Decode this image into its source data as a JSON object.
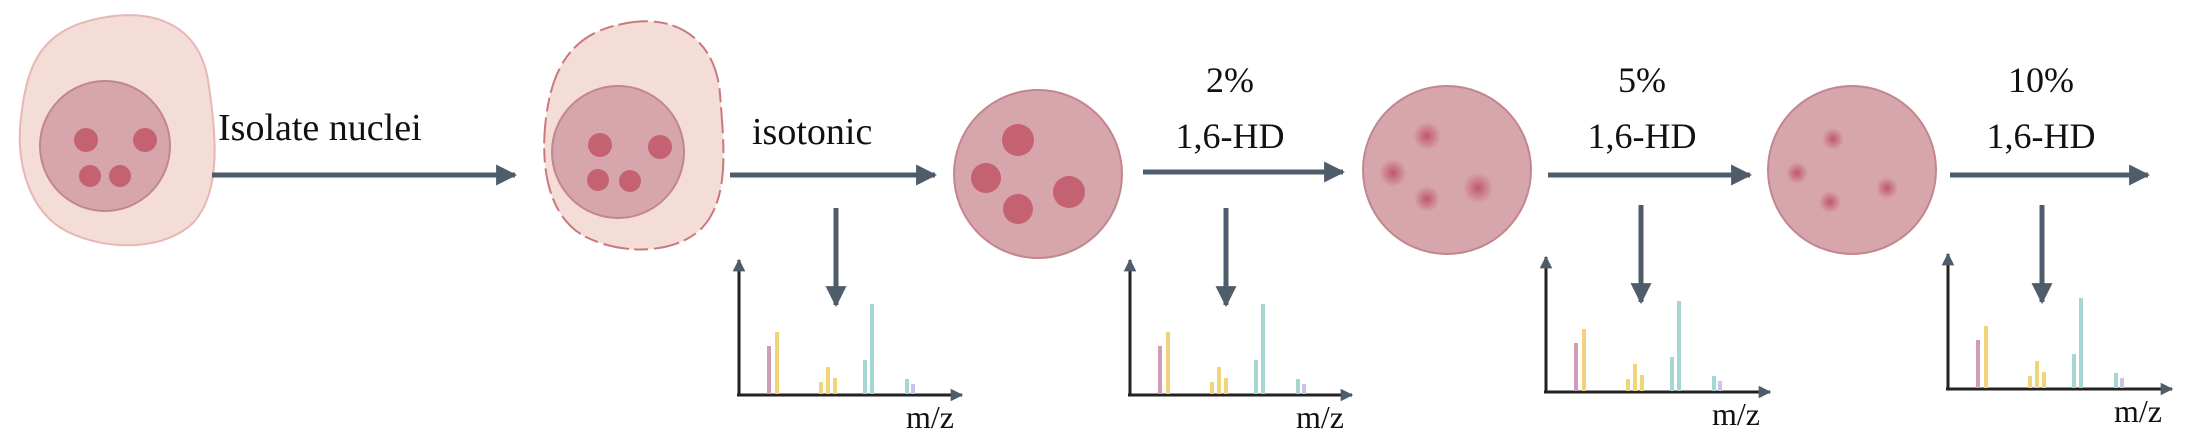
{
  "steps": [
    {
      "line1": "Isolate nuclei"
    },
    {
      "line1": "isotonic"
    },
    {
      "line1": "2%",
      "line2": "1,6-HD"
    },
    {
      "line1": "5%",
      "line2": "1,6-HD"
    },
    {
      "line1": "10%",
      "line2": "1,6-HD"
    }
  ],
  "spectra_axis_label": "m/z",
  "colors": {
    "arrow": "#4f5d6b",
    "cell_fill": "#f5ddd7",
    "cell_stroke": "#e6b7b4",
    "nucleus_fill": "#d7a6ad",
    "nucleus_stroke": "#c2868e",
    "speckle": "#c46272",
    "axis": "#222222",
    "peak_pink": "#cf9db8",
    "peak_yellow": "#f1d37a",
    "peak_teal": "#a6d6d3",
    "peak_lavender": "#c7c6ea"
  }
}
